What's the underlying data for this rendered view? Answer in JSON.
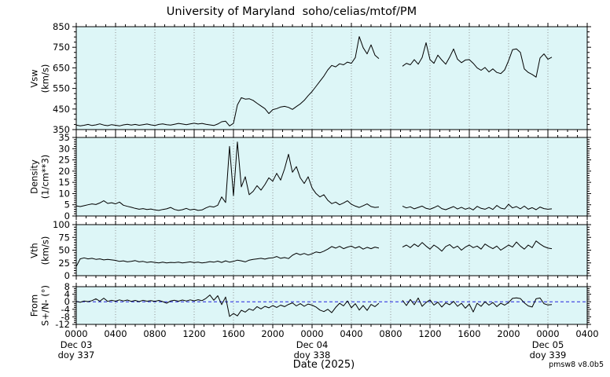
{
  "title": "University of Maryland  soho/celias/mtof/PM",
  "watermark": "pmsw8 v8.0b5",
  "colors": {
    "background": "#ffffff",
    "panel_bg": "#ddf6f7",
    "line": "#000000",
    "grid": "#909090",
    "zero_line": "#2222dd",
    "text": "#000000"
  },
  "x_axis": {
    "title": "Date (2025)",
    "unit": "hours since 2025-12-03 00:00 UT",
    "range_hours": [
      0,
      52
    ],
    "major_tick_hours": 4,
    "minor_tick_hours": 1,
    "grid": "vertical dotted lines at major ticks",
    "ticks": [
      {
        "hour": 0,
        "label": "0000",
        "date": "Dec 03",
        "doy": "doy 337"
      },
      {
        "hour": 4,
        "label": "0400"
      },
      {
        "hour": 8,
        "label": "0800"
      },
      {
        "hour": 12,
        "label": "1200"
      },
      {
        "hour": 16,
        "label": "1600"
      },
      {
        "hour": 20,
        "label": "2000"
      },
      {
        "hour": 24,
        "label": "0000",
        "date": "Dec 04",
        "doy": "doy 338"
      },
      {
        "hour": 28,
        "label": "0400"
      },
      {
        "hour": 32,
        "label": "0800"
      },
      {
        "hour": 36,
        "label": "1200"
      },
      {
        "hour": 40,
        "label": "1600"
      },
      {
        "hour": 44,
        "label": "2000"
      },
      {
        "hour": 48,
        "label": "0000",
        "date": "Dec 05",
        "doy": "doy 339"
      },
      {
        "hour": 52,
        "label": "0400"
      }
    ]
  },
  "chart_data": {
    "type": "line",
    "title": "University of Maryland  soho/celias/mtof/PM",
    "legend": "none",
    "x_start_hours": 0,
    "x_step_hours": 0.4,
    "x_end_hours": 48.4,
    "data_gap": "no data between ~30.8h and ~33h (0700-0900 Dec 04), encoded as nulls",
    "panels": [
      {
        "id": "vsw",
        "name": "Vsw",
        "ylabel_lines": [
          "Vsw",
          "(km/s)"
        ],
        "ylim": [
          350,
          850
        ],
        "yticks": [
          350,
          450,
          550,
          650,
          750,
          850
        ],
        "ytick_minor_step": 25,
        "values": [
          372,
          368,
          371,
          375,
          370,
          373,
          378,
          372,
          369,
          374,
          371,
          368,
          373,
          376,
          372,
          375,
          371,
          374,
          377,
          373,
          370,
          375,
          378,
          374,
          372,
          376,
          380,
          377,
          374,
          378,
          381,
          377,
          380,
          376,
          373,
          370,
          377,
          388,
          391,
          368,
          380,
          470,
          505,
          498,
          500,
          492,
          478,
          465,
          452,
          428,
          447,
          452,
          460,
          463,
          458,
          448,
          462,
          475,
          492,
          515,
          535,
          560,
          585,
          610,
          640,
          662,
          655,
          670,
          665,
          678,
          672,
          700,
          802,
          748,
          718,
          762,
          712,
          695,
          null,
          null,
          null,
          null,
          null,
          658,
          672,
          665,
          690,
          668,
          700,
          772,
          690,
          672,
          712,
          688,
          668,
          702,
          742,
          692,
          675,
          688,
          690,
          672,
          650,
          638,
          652,
          630,
          645,
          628,
          622,
          640,
          685,
          738,
          742,
          725,
          645,
          628,
          618,
          605,
          698,
          718,
          692,
          702
        ]
      },
      {
        "id": "density",
        "name": "Density",
        "ylabel_lines": [
          "Density",
          "(1/cm**3)"
        ],
        "ylim": [
          0,
          35
        ],
        "yticks": [
          0,
          5,
          10,
          15,
          20,
          25,
          30,
          35
        ],
        "ytick_minor_step": 1,
        "values": [
          4.5,
          4.2,
          4.6,
          5.0,
          5.4,
          5.1,
          5.8,
          6.8,
          5.6,
          5.9,
          5.4,
          6.2,
          4.8,
          4.3,
          3.9,
          3.4,
          3.0,
          3.3,
          2.9,
          3.1,
          2.7,
          2.5,
          2.9,
          3.2,
          3.8,
          2.9,
          2.5,
          2.8,
          3.4,
          2.7,
          3.0,
          2.5,
          2.7,
          3.6,
          4.3,
          4.0,
          4.8,
          8.5,
          6.0,
          31.0,
          9.0,
          33.0,
          13.0,
          17.5,
          9.5,
          11.0,
          13.5,
          11.5,
          14.0,
          17.0,
          15.5,
          19.0,
          16.0,
          21.0,
          27.5,
          19.5,
          22.0,
          17.0,
          14.5,
          17.5,
          12.5,
          10.0,
          8.5,
          9.5,
          7.0,
          5.5,
          6.2,
          5.0,
          5.8,
          6.8,
          5.2,
          4.4,
          3.8,
          4.6,
          5.4,
          4.2,
          3.8,
          4.0,
          null,
          null,
          null,
          null,
          null,
          4.4,
          3.6,
          4.1,
          3.2,
          3.8,
          4.4,
          3.4,
          3.0,
          3.7,
          4.6,
          3.3,
          2.8,
          3.5,
          4.2,
          3.1,
          3.9,
          3.0,
          3.6,
          2.7,
          4.3,
          3.4,
          3.0,
          3.8,
          2.9,
          4.7,
          3.5,
          3.1,
          5.2,
          3.6,
          4.2,
          3.2,
          4.4,
          3.0,
          3.7,
          2.8,
          4.0,
          3.3,
          3.0,
          3.2
        ]
      },
      {
        "id": "vth",
        "name": "Vth",
        "ylabel_lines": [
          "Vth",
          "(km/s)"
        ],
        "ylim": [
          0,
          100
        ],
        "yticks": [
          0,
          25,
          50,
          75,
          100
        ],
        "ytick_minor_step": 5,
        "values": [
          18,
          33,
          35,
          33,
          34,
          32,
          33,
          31,
          32,
          31,
          30,
          28,
          29,
          27,
          28,
          29.5,
          27,
          28,
          26,
          27,
          26,
          25,
          26.5,
          25,
          26,
          25.5,
          26.5,
          25,
          26,
          27,
          25.5,
          26.5,
          25,
          26,
          27.5,
          26.5,
          28.5,
          26,
          29,
          26.5,
          28,
          30.5,
          29,
          27,
          30.5,
          32,
          33,
          34,
          32.5,
          34.5,
          35,
          37.5,
          34,
          35.5,
          33.5,
          40,
          44,
          41,
          43.5,
          40.5,
          43,
          46.5,
          45,
          48,
          52,
          57,
          54,
          57.5,
          53,
          56,
          58,
          54,
          57,
          52,
          55.5,
          53,
          56,
          54,
          null,
          null,
          null,
          null,
          null,
          56,
          60,
          55,
          62,
          57,
          65,
          58,
          52,
          60,
          55,
          48,
          57,
          61,
          54,
          58,
          50,
          56,
          60,
          55,
          58,
          52,
          62,
          57,
          53,
          58,
          50,
          55,
          60,
          56,
          66,
          58,
          52,
          60,
          55,
          68,
          62,
          57,
          54,
          53
        ]
      },
      {
        "id": "angle",
        "name": "From S+/N-",
        "ylabel_lines": [
          "From",
          "S+/N- (°)"
        ],
        "ylim": [
          -12,
          8
        ],
        "yticks": [
          -12,
          -8,
          -4,
          0,
          4,
          8
        ],
        "ytick_minor_step": 1,
        "zero_dashed_line": 0,
        "values": [
          0.2,
          -0.3,
          0.4,
          0.1,
          0.6,
          1.6,
          0.3,
          1.9,
          0.2,
          0.8,
          0.3,
          1.0,
          0.4,
          0.9,
          0.2,
          0.7,
          0.1,
          0.8,
          0.3,
          0.6,
          0.2,
          0.7,
          0.1,
          -0.8,
          0.4,
          0.8,
          0.3,
          0.9,
          0.4,
          1.0,
          0.5,
          1.1,
          0.6,
          1.8,
          3.6,
          0.8,
          3.2,
          -1.5,
          2.5,
          -7.8,
          -6.2,
          -7.5,
          -4.5,
          -5.5,
          -3.8,
          -4.6,
          -2.6,
          -3.8,
          -2.4,
          -3.2,
          -2.0,
          -3.0,
          -1.8,
          -2.6,
          -1.4,
          -0.6,
          -2.2,
          -1.0,
          -2.4,
          -1.2,
          -1.8,
          -2.8,
          -4.4,
          -5.2,
          -4.0,
          -5.8,
          -3.0,
          -0.8,
          -2.2,
          0.4,
          -3.2,
          -1.0,
          -4.4,
          -2.0,
          -4.6,
          -1.4,
          -2.6,
          -0.8,
          null,
          null,
          null,
          null,
          null,
          0.8,
          -2.0,
          1.2,
          -1.6,
          2.0,
          -2.4,
          -0.4,
          1.0,
          -1.8,
          -0.2,
          -2.8,
          -0.6,
          -1.6,
          0.2,
          -2.4,
          -0.8,
          -3.4,
          -1.2,
          -5.4,
          -0.8,
          -2.4,
          0.0,
          -1.8,
          -0.4,
          -2.6,
          -0.8,
          -1.8,
          -0.4,
          1.8,
          2.1,
          1.7,
          -0.6,
          -2.2,
          -2.8,
          1.6,
          2.0,
          -1.0,
          -1.7,
          -1.5
        ]
      }
    ]
  }
}
